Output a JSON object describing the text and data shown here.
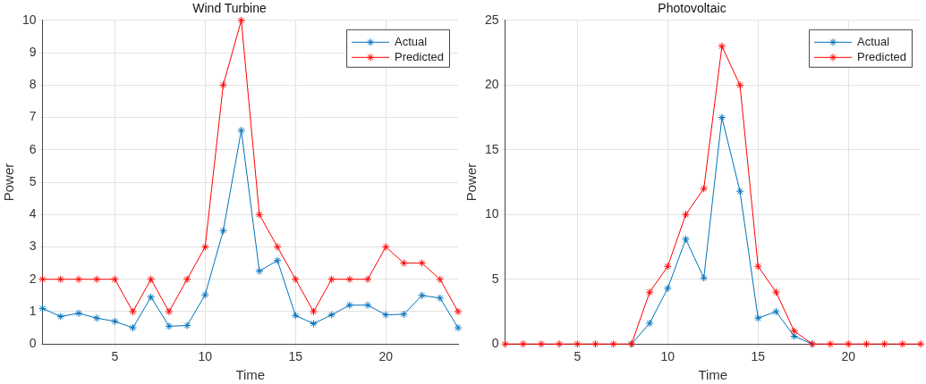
{
  "chart_data": [
    {
      "type": "line",
      "title": "Wind Turbine",
      "xlabel": "Time",
      "ylabel": "Power",
      "x": [
        1,
        2,
        3,
        4,
        5,
        6,
        7,
        8,
        9,
        10,
        11,
        12,
        13,
        14,
        15,
        16,
        17,
        18,
        19,
        20,
        21,
        22,
        23,
        24
      ],
      "series": [
        {
          "name": "Actual",
          "color": "#0072bd",
          "values": [
            1.1,
            0.85,
            0.95,
            0.8,
            0.7,
            0.5,
            1.45,
            0.55,
            0.57,
            1.52,
            3.5,
            6.6,
            2.25,
            2.58,
            0.88,
            0.63,
            0.9,
            1.2,
            1.2,
            0.9,
            0.92,
            1.5,
            1.42,
            0.5
          ]
        },
        {
          "name": "Predicted",
          "color": "#ff0000",
          "values": [
            2,
            2,
            2,
            2,
            2,
            1,
            2,
            1,
            2,
            3,
            8,
            10,
            4,
            3,
            2,
            1,
            2,
            2,
            2,
            3,
            2.5,
            2.5,
            2,
            1
          ]
        }
      ],
      "xlim": [
        1,
        24
      ],
      "xticks": [
        5,
        10,
        15,
        20
      ],
      "ylim": [
        0,
        10
      ],
      "yticks": [
        0,
        1,
        2,
        3,
        4,
        5,
        6,
        7,
        8,
        9,
        10
      ],
      "grid": true,
      "legend": "top right",
      "marker": "cross",
      "line_style": "solid"
    },
    {
      "type": "line",
      "title": "Photovoltaic",
      "xlabel": "Time",
      "ylabel": "Power",
      "x": [
        1,
        2,
        3,
        4,
        5,
        6,
        7,
        8,
        9,
        10,
        11,
        12,
        13,
        14,
        15,
        16,
        17,
        18,
        19,
        20,
        21,
        22,
        23,
        24
      ],
      "series": [
        {
          "name": "Actual",
          "color": "#0072bd",
          "values": [
            null,
            null,
            null,
            null,
            null,
            null,
            null,
            0,
            1.6,
            4.3,
            8.1,
            5.1,
            17.5,
            11.8,
            2.0,
            2.5,
            0.6,
            0,
            null,
            null,
            null,
            null,
            null,
            null
          ]
        },
        {
          "name": "Predicted",
          "color": "#ff0000",
          "values": [
            0,
            0,
            0,
            0,
            0,
            0,
            0,
            0,
            4,
            6,
            10,
            12,
            23,
            20,
            6,
            4,
            1,
            0,
            0,
            0,
            0,
            0,
            0,
            0
          ]
        }
      ],
      "xlim": [
        1,
        24
      ],
      "xticks": [
        5,
        10,
        15,
        20
      ],
      "ylim": [
        0,
        25
      ],
      "yticks": [
        0,
        5,
        10,
        15,
        20,
        25
      ],
      "grid": true,
      "legend": "top right",
      "marker": "cross",
      "line_style": "solid"
    }
  ]
}
